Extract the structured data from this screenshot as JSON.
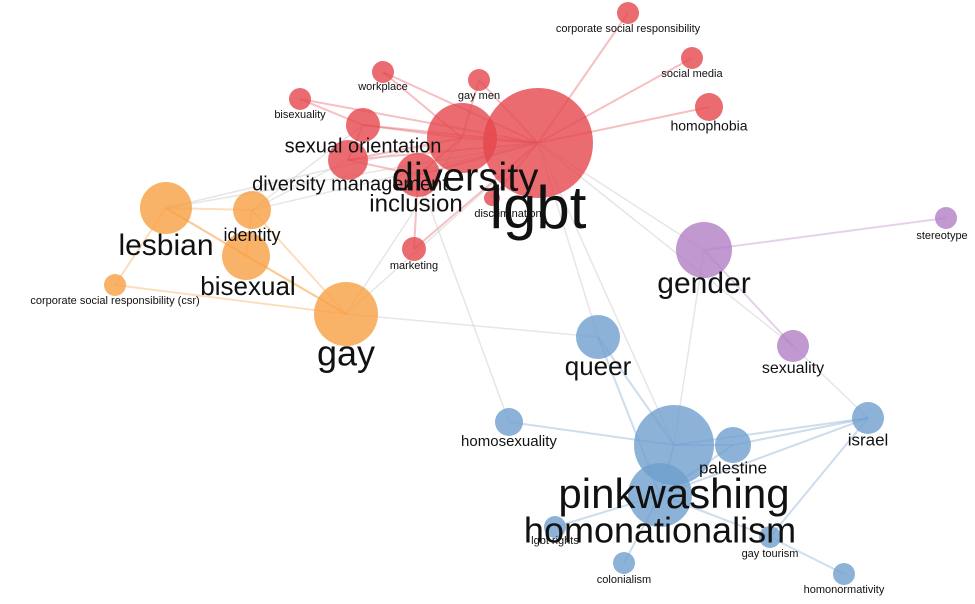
{
  "clusters": [
    {
      "color": "#e5474d"
    },
    {
      "color": "#f7a043"
    },
    {
      "color": "#b27ec4"
    },
    {
      "color": "#6f9fce"
    }
  ],
  "nodes": [
    {
      "label": "lgbt",
      "cluster": 0
    },
    {
      "label": "diversity",
      "cluster": 0
    },
    {
      "label": "inclusion",
      "cluster": 0
    },
    {
      "label": "sexual orientation",
      "cluster": 0
    },
    {
      "label": "discrimination",
      "cluster": 0
    },
    {
      "label": "diversity management",
      "cluster": 0
    },
    {
      "label": "workplace",
      "cluster": 0
    },
    {
      "label": "gay men",
      "cluster": 0
    },
    {
      "label": "bisexuality",
      "cluster": 0
    },
    {
      "label": "corporate social responsibility",
      "cluster": 0
    },
    {
      "label": "social media",
      "cluster": 0
    },
    {
      "label": "homophobia",
      "cluster": 0
    },
    {
      "label": "marketing",
      "cluster": 0
    },
    {
      "label": "lesbian",
      "cluster": 1
    },
    {
      "label": "identity",
      "cluster": 1
    },
    {
      "label": "bisexual",
      "cluster": 1
    },
    {
      "label": "gay",
      "cluster": 1
    },
    {
      "label": "corporate social responsibility (csr)",
      "cluster": 1
    },
    {
      "label": "gender",
      "cluster": 2
    },
    {
      "label": "stereotype",
      "cluster": 2
    },
    {
      "label": "sexuality",
      "cluster": 2
    },
    {
      "label": "queer",
      "cluster": 3
    },
    {
      "label": "homosexuality",
      "cluster": 3
    },
    {
      "label": "pinkwashing",
      "cluster": 3
    },
    {
      "label": "homonationalism",
      "cluster": 3
    },
    {
      "label": "palestine",
      "cluster": 3
    },
    {
      "label": "israel",
      "cluster": 3
    },
    {
      "label": "lgbt rights",
      "cluster": 3
    },
    {
      "label": "gay tourism",
      "cluster": 3
    },
    {
      "label": "colonialism",
      "cluster": 3
    },
    {
      "label": "homonormativity",
      "cluster": 3
    }
  ]
}
